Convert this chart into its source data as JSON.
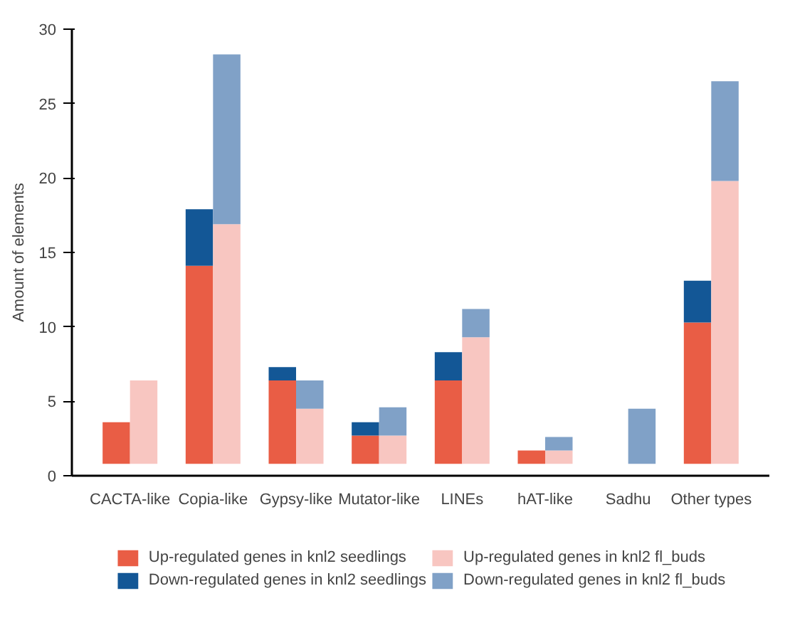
{
  "chart_data": {
    "type": "bar",
    "ylabel": "Amount of elements",
    "categories": [
      "CACTA-like",
      "Copia-like",
      "Gypsy-like",
      "Mutator-like",
      "LINEs",
      "hAT-like",
      "Sadhu",
      "Other types"
    ],
    "series": [
      {
        "name": "Up-regulated genes in knl2 seedlings",
        "color": "#e95d45",
        "base": [
          0.8,
          0.8,
          0.8,
          0.8,
          0.8,
          0.8,
          null,
          0.8
        ],
        "values": [
          2.8,
          13.3,
          5.6,
          1.9,
          5.6,
          0.9,
          null,
          9.5
        ]
      },
      {
        "name": "Down-regulated genes in knl2 seedlings",
        "color": "#135796",
        "base": [
          null,
          14.1,
          6.4,
          2.7,
          6.4,
          null,
          null,
          10.3
        ],
        "values": [
          null,
          3.8,
          0.9,
          0.9,
          1.9,
          null,
          null,
          2.8
        ]
      },
      {
        "name": "Up-regulated genes in knl2 fl_buds",
        "color": "#f8c6c1",
        "base": [
          0.8,
          0.8,
          0.8,
          0.8,
          0.8,
          0.8,
          null,
          0.8
        ],
        "values": [
          5.6,
          16.1,
          3.7,
          1.9,
          8.5,
          0.9,
          null,
          19.0
        ]
      },
      {
        "name": "Down-regulated genes in knl2 fl_buds",
        "color": "#80a1c7",
        "base": [
          null,
          16.9,
          4.5,
          2.7,
          9.3,
          1.7,
          0.8,
          19.8
        ],
        "values": [
          null,
          11.4,
          1.9,
          1.9,
          1.9,
          0.9,
          3.7,
          6.7
        ]
      }
    ],
    "ylim": [
      0,
      30
    ],
    "yticks": [
      0,
      5,
      10,
      15,
      20,
      25,
      30
    ],
    "legend": "bottom"
  }
}
